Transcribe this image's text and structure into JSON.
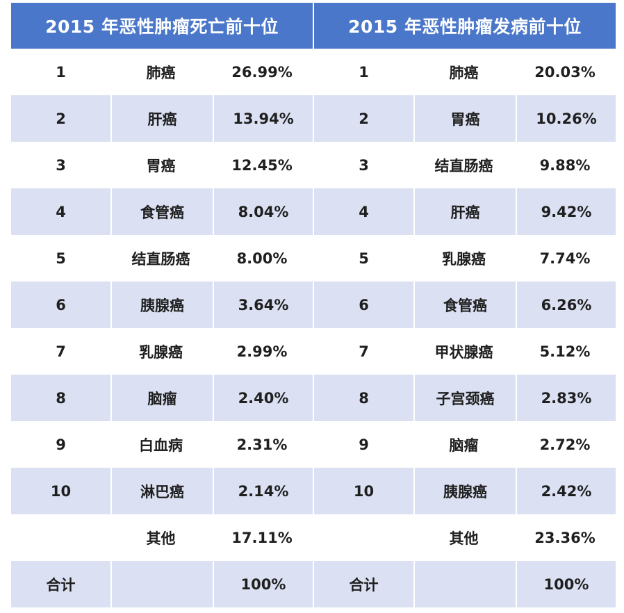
{
  "headers": {
    "mortality": "2015 年恶性肿瘤死亡前十位",
    "incidence": "2015 年恶性肿瘤发病前十位"
  },
  "rows": [
    {
      "m_rank": "1",
      "m_name": "肺癌",
      "m_pct": "26.99%",
      "i_rank": "1",
      "i_name": "肺癌",
      "i_pct": "20.03%"
    },
    {
      "m_rank": "2",
      "m_name": "肝癌",
      "m_pct": "13.94%",
      "i_rank": "2",
      "i_name": "胃癌",
      "i_pct": "10.26%"
    },
    {
      "m_rank": "3",
      "m_name": "胃癌",
      "m_pct": "12.45%",
      "i_rank": "3",
      "i_name": "结直肠癌",
      "i_pct": "9.88%"
    },
    {
      "m_rank": "4",
      "m_name": "食管癌",
      "m_pct": "8.04%",
      "i_rank": "4",
      "i_name": "肝癌",
      "i_pct": "9.42%"
    },
    {
      "m_rank": "5",
      "m_name": "结直肠癌",
      "m_pct": "8.00%",
      "i_rank": "5",
      "i_name": "乳腺癌",
      "i_pct": "7.74%"
    },
    {
      "m_rank": "6",
      "m_name": "胰腺癌",
      "m_pct": "3.64%",
      "i_rank": "6",
      "i_name": "食管癌",
      "i_pct": "6.26%"
    },
    {
      "m_rank": "7",
      "m_name": "乳腺癌",
      "m_pct": "2.99%",
      "i_rank": "7",
      "i_name": "甲状腺癌",
      "i_pct": "5.12%"
    },
    {
      "m_rank": "8",
      "m_name": "脑瘤",
      "m_pct": "2.40%",
      "i_rank": "8",
      "i_name": "子宫颈癌",
      "i_pct": "2.83%"
    },
    {
      "m_rank": "9",
      "m_name": "白血病",
      "m_pct": "2.31%",
      "i_rank": "9",
      "i_name": "脑瘤",
      "i_pct": "2.72%"
    },
    {
      "m_rank": "10",
      "m_name": "淋巴癌",
      "m_pct": "2.14%",
      "i_rank": "10",
      "i_name": "胰腺癌",
      "i_pct": "2.42%"
    },
    {
      "m_rank": "",
      "m_name": "其他",
      "m_pct": "17.11%",
      "i_rank": "",
      "i_name": "其他",
      "i_pct": "23.36%"
    },
    {
      "m_rank": "合计",
      "m_name": "",
      "m_pct": "100%",
      "i_rank": "合计",
      "i_name": "",
      "i_pct": "100%"
    }
  ],
  "colors": {
    "header_bg": "#4a77c9",
    "header_text": "#ffffff",
    "shaded_row": "#dbe1f3"
  }
}
